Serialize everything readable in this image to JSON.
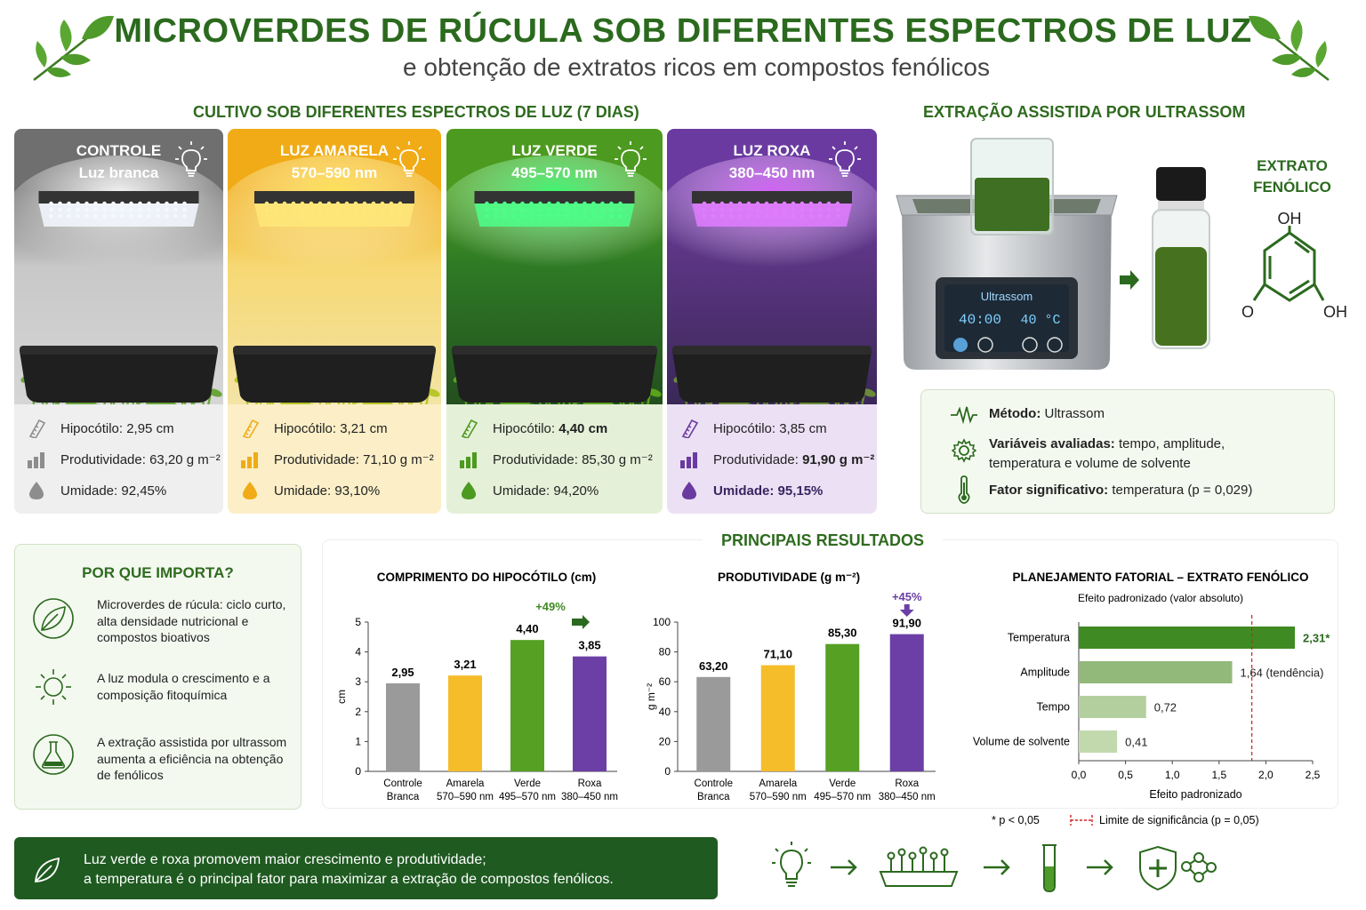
{
  "header": {
    "title": "MICROVERDES DE RÚCULA SOB DIFERENTES ESPECTROS DE LUZ",
    "subtitle": "e obtenção de extratos ricos em compostos fenólicos"
  },
  "cultivation": {
    "heading": "CULTIVO SOB DIFERENTES ESPECTROS DE LUZ (7 DIAS)",
    "cards": [
      {
        "title": "CONTROLE",
        "subtitle": "Luz branca",
        "hipocotilo": "Hipocótilo: 2,95 cm",
        "produtividade": "Produtividade: 63,20 g m⁻²",
        "umidade": "Umidade: 92,45%",
        "color": "#8c8c8c"
      },
      {
        "title": "LUZ AMARELA",
        "subtitle": "570–590 nm",
        "hipocotilo": "Hipocótilo: 3,21 cm",
        "produtividade": "Produtividade: 71,10 g m⁻²",
        "umidade": "Umidade: 93,10%",
        "color": "#f2b01e"
      },
      {
        "title": "LUZ VERDE",
        "subtitle": "495–570 nm",
        "hipocotilo_prefix": "Hipocótilo: ",
        "hipocotilo_value": "4,40 cm",
        "produtividade": "Produtividade: 85,30 g m⁻²",
        "umidade": "Umidade: 94,20%",
        "color": "#4e9a22"
      },
      {
        "title": "LUZ ROXA",
        "subtitle": "380–450 nm",
        "hipocotilo": "Hipocótilo: 3,85 cm",
        "produtividade_prefix": "Produtividade: ",
        "produtividade_value": "91,90 g m⁻²",
        "umidade": "Umidade: 95,15%",
        "color": "#6a3aa0"
      }
    ]
  },
  "extraction": {
    "heading": "EXTRAÇÃO ASSISTIDA POR ULTRASSOM",
    "device_label": "Ultrassom",
    "device_time": "40:00",
    "device_temp": "40 °C",
    "extract_label_1": "EXTRATO",
    "extract_label_2": "FENÓLICO",
    "molecule_oh_top": "OH",
    "molecule_o_left": "O",
    "molecule_oh_right": "OH",
    "method_label": "Método:",
    "method_value": " Ultrassom",
    "variables_label": "Variáveis avaliadas:",
    "variables_value": " tempo, amplitude,",
    "variables_value_2": "temperatura e volume de solvente",
    "factor_label": "Fator significativo:",
    "factor_value": " temperatura (p = 0,029)"
  },
  "why": {
    "heading": "POR QUE IMPORTA?",
    "items": [
      {
        "line1": "Microverdes de rúcula: ciclo curto,",
        "line2": "alta densidade nutricional e",
        "line3": "compostos bioativos"
      },
      {
        "line1": "A luz modula o crescimento e a",
        "line2": "composição fitoquímica",
        "line3": ""
      },
      {
        "line1": "A extração assistida por ultrassom",
        "line2": "aumenta a eficiência na obtenção",
        "line3": "de fenólicos"
      }
    ]
  },
  "results": {
    "heading": "PRINCIPAIS RESULTADOS"
  },
  "chart_data": [
    {
      "type": "bar",
      "title": "COMPRIMENTO DO HIPOCÓTILO (cm)",
      "ylabel": "cm",
      "categories": [
        "Controle Branca",
        "Amarela 570–590 nm",
        "Verde 495–570 nm",
        "Roxa 380–450 nm"
      ],
      "category_lines": [
        [
          "Controle",
          "Branca"
        ],
        [
          "Amarela",
          "570–590 nm"
        ],
        [
          "Verde",
          "495–570 nm"
        ],
        [
          "Roxa",
          "380–450 nm"
        ]
      ],
      "values": [
        2.95,
        3.21,
        4.4,
        3.85
      ],
      "value_labels": [
        "2,95",
        "3,21",
        "4,40",
        "3,85"
      ],
      "colors": [
        "#9a9a9a",
        "#f6bd2a",
        "#56a024",
        "#6b3fa5"
      ],
      "yticks": [
        "0",
        "1",
        "2",
        "3",
        "4",
        "5"
      ],
      "ylim": [
        0,
        5
      ],
      "annotation": "+49%"
    },
    {
      "type": "bar",
      "title": "PRODUTIVIDADE (g m⁻²)",
      "ylabel": "g m⁻²",
      "categories": [
        "Controle Branca",
        "Amarela 570–590 nm",
        "Verde 495–570 nm",
        "Roxa 380–450 nm"
      ],
      "category_lines": [
        [
          "Controle",
          "Branca"
        ],
        [
          "Amarela",
          "570–590 nm"
        ],
        [
          "Verde",
          "495–570 nm"
        ],
        [
          "Roxa",
          "380–450 nm"
        ]
      ],
      "values": [
        63.2,
        71.1,
        85.3,
        91.9
      ],
      "value_labels": [
        "63,20",
        "71,10",
        "85,30",
        "91,90"
      ],
      "colors": [
        "#9a9a9a",
        "#f6bd2a",
        "#56a024",
        "#6b3fa5"
      ],
      "yticks": [
        "0",
        "20",
        "40",
        "60",
        "80",
        "100"
      ],
      "ylim": [
        0,
        100
      ],
      "annotation": "+45%"
    },
    {
      "type": "bar",
      "orientation": "horizontal",
      "title": "PLANEJAMENTO FATORIAL – EXTRATO FENÓLICO",
      "subtitle": "Efeito padronizado (valor absoluto)",
      "xlabel": "Efeito padronizado",
      "categories": [
        "Temperatura",
        "Amplitude",
        "Tempo",
        "Volume de solvente"
      ],
      "values": [
        2.31,
        1.64,
        0.72,
        0.41
      ],
      "value_labels": [
        "2,31*",
        "1,64 (tendência)",
        "0,72",
        "0,41"
      ],
      "colors": [
        "#3f8a22",
        "#93b97a",
        "#b3cf9e",
        "#c2d9ae"
      ],
      "xticks": [
        "0,0",
        "0,5",
        "1,0",
        "1,5",
        "2,0",
        "2,5"
      ],
      "xlim": [
        0,
        2.5
      ],
      "threshold": 1.85,
      "legend_sig": "* p < 0,05",
      "legend_limit": "Limite de significância (p = 0,05)"
    }
  ],
  "conclusion": {
    "line1": "Luz verde e roxa promovem maior crescimento e produtividade;",
    "line2": "a temperatura é o principal fator para maximizar a extração de compostos fenólicos."
  },
  "icons": [
    "leaf-sprig-icon",
    "lightbulb-icon",
    "ruler-icon",
    "bar-chart-icon",
    "droplet-icon",
    "wave-icon",
    "gear-icon",
    "thermometer-icon",
    "leaf-icon",
    "sun-icon",
    "flask-icon",
    "arrow-icon",
    "seedling-tray-icon",
    "test-tube-icon",
    "shield-molecule-icon"
  ]
}
